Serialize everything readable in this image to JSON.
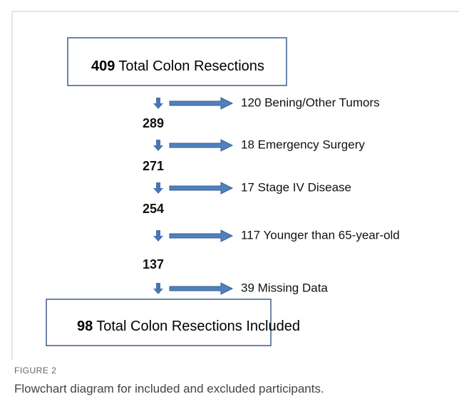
{
  "top_box": {
    "count": "409",
    "label": "Total Colon Resections"
  },
  "steps": [
    {
      "excluded": "120 Bening/Other Tumors",
      "remaining": "289"
    },
    {
      "excluded": "18 Emergency Surgery",
      "remaining": "271"
    },
    {
      "excluded": "17 Stage IV Disease",
      "remaining": "254"
    },
    {
      "excluded": "117 Younger than 65-year-old",
      "remaining": "137"
    },
    {
      "excluded": "39 Missing Data"
    }
  ],
  "bottom_box": {
    "count": "98",
    "label": "Total Colon Resections Included"
  },
  "caption": {
    "label": "FIGURE 2",
    "text": "Flowchart diagram for included and excluded participants."
  }
}
